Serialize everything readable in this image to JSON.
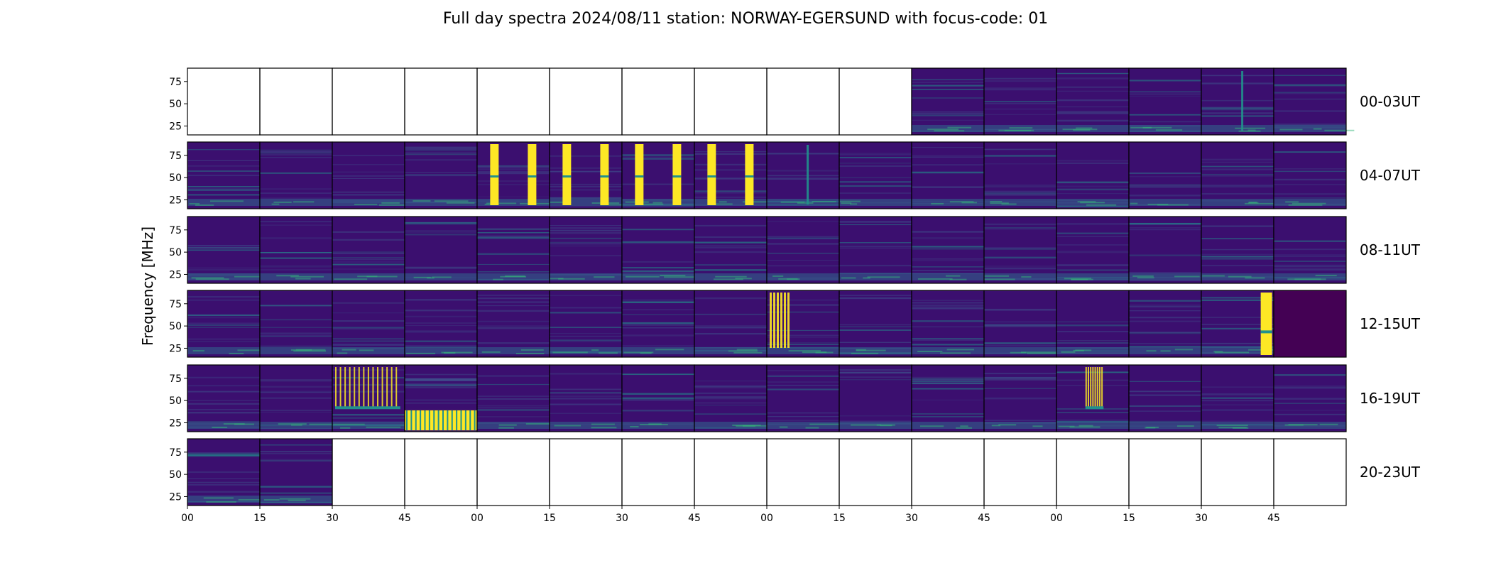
{
  "chart_data": {
    "type": "heatmap",
    "title": "Full day spectra 2024/08/11 station: NORWAY-EGERSUND with focus-code: 01",
    "ylabel": "Frequency [MHz]",
    "xlabel": "",
    "ylim": [
      15,
      90
    ],
    "y_ticks": [
      "75",
      "50",
      "25"
    ],
    "y_tick_values": [
      75,
      50,
      25
    ],
    "x_ticks": [
      "00",
      "15",
      "30",
      "45",
      "00",
      "15",
      "30",
      "45",
      "00",
      "15",
      "30",
      "45",
      "00",
      "15",
      "30",
      "45"
    ],
    "colormap": "viridis",
    "colors": {
      "background": "#440154",
      "dark": "#3b0f6f",
      "mid": "#21918c",
      "bright": "#fde725",
      "teal": "#35b779"
    },
    "grid": false,
    "rows": [
      {
        "label": "00-03UT",
        "panels": [
          "empty",
          "empty",
          "empty",
          "empty",
          "empty",
          "empty",
          "empty",
          "empty",
          "empty",
          "empty",
          "data",
          "data",
          "data",
          "data",
          "burst-single",
          "data"
        ]
      },
      {
        "label": "04-07UT",
        "panels": [
          "data",
          "data",
          "data",
          "data",
          "burst-double",
          "burst-double",
          "burst-double",
          "burst-double",
          "burst-single",
          "data",
          "data",
          "data",
          "data",
          "data",
          "data",
          "data"
        ]
      },
      {
        "label": "08-11UT",
        "panels": [
          "data",
          "data",
          "data",
          "data",
          "data",
          "data",
          "data",
          "data",
          "data",
          "data",
          "data",
          "data",
          "data",
          "data",
          "data",
          "data"
        ]
      },
      {
        "label": "12-15UT",
        "panels": [
          "data",
          "data",
          "data",
          "data",
          "data",
          "data",
          "data",
          "data",
          "burst-dense",
          "data",
          "data",
          "data",
          "data",
          "data",
          "burst-block",
          "dark-fill"
        ]
      },
      {
        "label": "16-19UT",
        "panels": [
          "data",
          "data",
          "striped",
          "striped-bottom",
          "data",
          "data",
          "data",
          "data",
          "data",
          "data",
          "data",
          "data",
          "striped-small",
          "data",
          "data",
          "data"
        ]
      },
      {
        "label": "20-23UT",
        "panels": [
          "data",
          "data",
          "empty",
          "empty",
          "empty",
          "empty",
          "empty",
          "empty",
          "empty",
          "empty",
          "empty",
          "empty",
          "empty",
          "empty",
          "empty",
          "empty"
        ]
      }
    ]
  }
}
